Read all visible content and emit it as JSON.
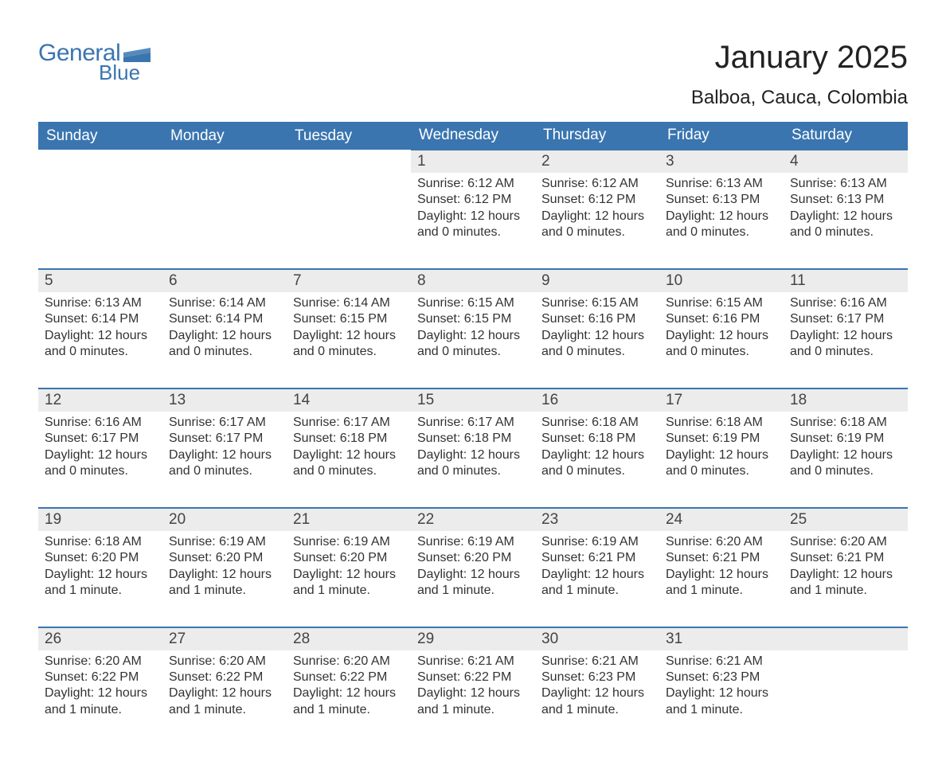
{
  "logo": {
    "text1": "General",
    "text2": "Blue",
    "color": "#3a75b0"
  },
  "title": "January 2025",
  "subtitle": "Balboa, Cauca, Colombia",
  "colors": {
    "header_bg": "#3a75b0",
    "header_text": "#ffffff",
    "daynum_bg": "#ececec",
    "daynum_border": "#3a75b0",
    "text": "#333333",
    "background": "#ffffff"
  },
  "weekdays": [
    "Sunday",
    "Monday",
    "Tuesday",
    "Wednesday",
    "Thursday",
    "Friday",
    "Saturday"
  ],
  "labels": {
    "sunrise": "Sunrise:",
    "sunset": "Sunset:",
    "daylight": "Daylight:"
  },
  "weeks": [
    [
      null,
      null,
      null,
      {
        "n": "1",
        "sr": "6:12 AM",
        "ss": "6:12 PM",
        "dl": "12 hours and 0 minutes."
      },
      {
        "n": "2",
        "sr": "6:12 AM",
        "ss": "6:12 PM",
        "dl": "12 hours and 0 minutes."
      },
      {
        "n": "3",
        "sr": "6:13 AM",
        "ss": "6:13 PM",
        "dl": "12 hours and 0 minutes."
      },
      {
        "n": "4",
        "sr": "6:13 AM",
        "ss": "6:13 PM",
        "dl": "12 hours and 0 minutes."
      }
    ],
    [
      {
        "n": "5",
        "sr": "6:13 AM",
        "ss": "6:14 PM",
        "dl": "12 hours and 0 minutes."
      },
      {
        "n": "6",
        "sr": "6:14 AM",
        "ss": "6:14 PM",
        "dl": "12 hours and 0 minutes."
      },
      {
        "n": "7",
        "sr": "6:14 AM",
        "ss": "6:15 PM",
        "dl": "12 hours and 0 minutes."
      },
      {
        "n": "8",
        "sr": "6:15 AM",
        "ss": "6:15 PM",
        "dl": "12 hours and 0 minutes."
      },
      {
        "n": "9",
        "sr": "6:15 AM",
        "ss": "6:16 PM",
        "dl": "12 hours and 0 minutes."
      },
      {
        "n": "10",
        "sr": "6:15 AM",
        "ss": "6:16 PM",
        "dl": "12 hours and 0 minutes."
      },
      {
        "n": "11",
        "sr": "6:16 AM",
        "ss": "6:17 PM",
        "dl": "12 hours and 0 minutes."
      }
    ],
    [
      {
        "n": "12",
        "sr": "6:16 AM",
        "ss": "6:17 PM",
        "dl": "12 hours and 0 minutes."
      },
      {
        "n": "13",
        "sr": "6:17 AM",
        "ss": "6:17 PM",
        "dl": "12 hours and 0 minutes."
      },
      {
        "n": "14",
        "sr": "6:17 AM",
        "ss": "6:18 PM",
        "dl": "12 hours and 0 minutes."
      },
      {
        "n": "15",
        "sr": "6:17 AM",
        "ss": "6:18 PM",
        "dl": "12 hours and 0 minutes."
      },
      {
        "n": "16",
        "sr": "6:18 AM",
        "ss": "6:18 PM",
        "dl": "12 hours and 0 minutes."
      },
      {
        "n": "17",
        "sr": "6:18 AM",
        "ss": "6:19 PM",
        "dl": "12 hours and 0 minutes."
      },
      {
        "n": "18",
        "sr": "6:18 AM",
        "ss": "6:19 PM",
        "dl": "12 hours and 0 minutes."
      }
    ],
    [
      {
        "n": "19",
        "sr": "6:18 AM",
        "ss": "6:20 PM",
        "dl": "12 hours and 1 minute."
      },
      {
        "n": "20",
        "sr": "6:19 AM",
        "ss": "6:20 PM",
        "dl": "12 hours and 1 minute."
      },
      {
        "n": "21",
        "sr": "6:19 AM",
        "ss": "6:20 PM",
        "dl": "12 hours and 1 minute."
      },
      {
        "n": "22",
        "sr": "6:19 AM",
        "ss": "6:20 PM",
        "dl": "12 hours and 1 minute."
      },
      {
        "n": "23",
        "sr": "6:19 AM",
        "ss": "6:21 PM",
        "dl": "12 hours and 1 minute."
      },
      {
        "n": "24",
        "sr": "6:20 AM",
        "ss": "6:21 PM",
        "dl": "12 hours and 1 minute."
      },
      {
        "n": "25",
        "sr": "6:20 AM",
        "ss": "6:21 PM",
        "dl": "12 hours and 1 minute."
      }
    ],
    [
      {
        "n": "26",
        "sr": "6:20 AM",
        "ss": "6:22 PM",
        "dl": "12 hours and 1 minute."
      },
      {
        "n": "27",
        "sr": "6:20 AM",
        "ss": "6:22 PM",
        "dl": "12 hours and 1 minute."
      },
      {
        "n": "28",
        "sr": "6:20 AM",
        "ss": "6:22 PM",
        "dl": "12 hours and 1 minute."
      },
      {
        "n": "29",
        "sr": "6:21 AM",
        "ss": "6:22 PM",
        "dl": "12 hours and 1 minute."
      },
      {
        "n": "30",
        "sr": "6:21 AM",
        "ss": "6:23 PM",
        "dl": "12 hours and 1 minute."
      },
      {
        "n": "31",
        "sr": "6:21 AM",
        "ss": "6:23 PM",
        "dl": "12 hours and 1 minute."
      },
      null
    ]
  ]
}
